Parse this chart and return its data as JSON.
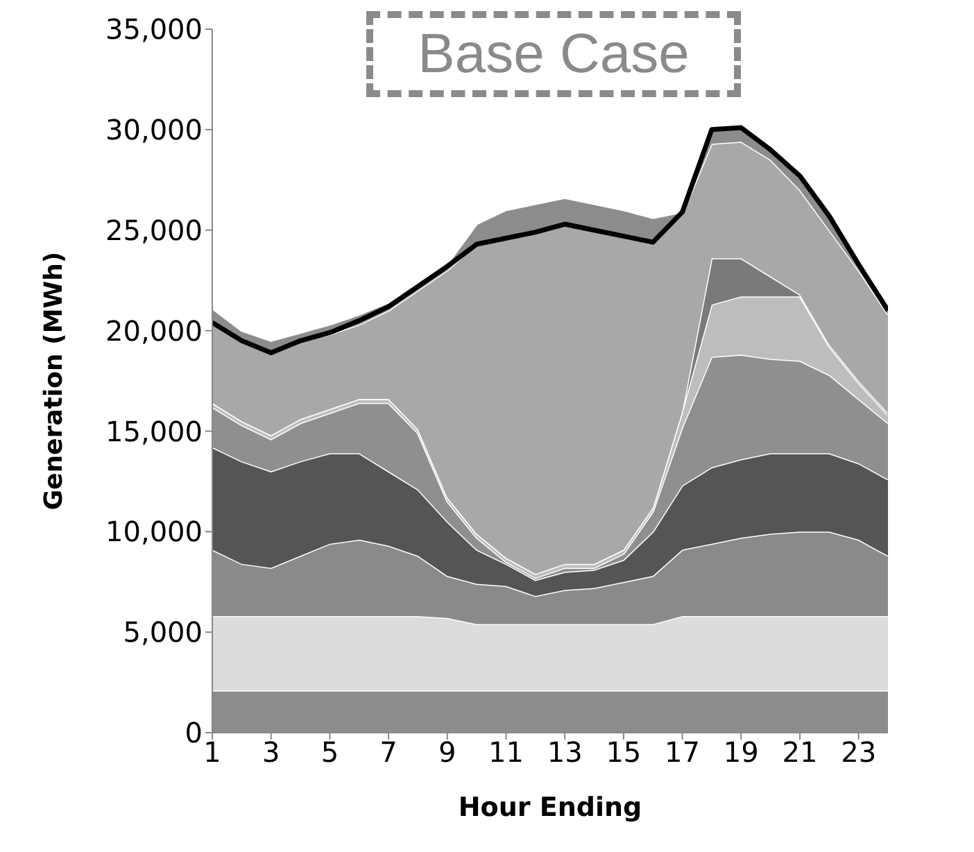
{
  "chart_data": {
    "type": "area",
    "stacked": true,
    "ylabel": "Generation (MWh)",
    "xlabel": "Hour Ending",
    "annotations": [
      "Base Case"
    ],
    "x": [
      1,
      2,
      3,
      4,
      5,
      6,
      7,
      8,
      9,
      10,
      11,
      12,
      13,
      14,
      15,
      16,
      17,
      18,
      19,
      20,
      21,
      22,
      23,
      24
    ],
    "xlim": [
      1,
      24
    ],
    "xticks": [
      1,
      3,
      5,
      7,
      9,
      11,
      13,
      15,
      17,
      19,
      21,
      23
    ],
    "ylim": [
      0,
      35000
    ],
    "yticks": [
      0,
      {
        "value": 5000,
        "label": "5,000"
      },
      {
        "value": 10000,
        "label": "10,000"
      },
      {
        "value": 15000,
        "label": "15,000"
      },
      {
        "value": 20000,
        "label": "20,000"
      },
      {
        "value": 25000,
        "label": "25,000"
      },
      {
        "value": 30000,
        "label": "30,000"
      },
      {
        "value": 35000,
        "label": "35,000"
      }
    ],
    "grid": false,
    "legend": false,
    "series": [
      {
        "color": "#8c8c8c",
        "values": [
          2100,
          2100,
          2100,
          2100,
          2100,
          2100,
          2100,
          2100,
          2100,
          2100,
          2100,
          2100,
          2100,
          2100,
          2100,
          2100,
          2100,
          2100,
          2100,
          2100,
          2100,
          2100,
          2100,
          2100
        ]
      },
      {
        "color": "#dcdcdc",
        "values": [
          3700,
          3700,
          3700,
          3700,
          3700,
          3700,
          3700,
          3700,
          3600,
          3300,
          3300,
          3300,
          3300,
          3300,
          3300,
          3300,
          3700,
          3700,
          3700,
          3700,
          3700,
          3700,
          3700,
          3700
        ]
      },
      {
        "color": "#8a8a8a",
        "values": [
          3300,
          2600,
          2400,
          3000,
          3600,
          3800,
          3500,
          3000,
          2100,
          2000,
          1900,
          1400,
          1700,
          1800,
          2100,
          2400,
          3300,
          3600,
          3900,
          4100,
          4200,
          4200,
          3800,
          3000
        ]
      },
      {
        "color": "#555555",
        "values": [
          5100,
          5100,
          4800,
          4700,
          4500,
          4300,
          3700,
          3300,
          2700,
          1700,
          1100,
          800,
          900,
          900,
          1100,
          2200,
          3200,
          3800,
          3900,
          4000,
          3900,
          3900,
          3800,
          3800
        ]
      },
      {
        "color": "#8f8f8f",
        "values": [
          2000,
          1800,
          1600,
          1900,
          2000,
          2500,
          3400,
          2800,
          1000,
          600,
          100,
          100,
          200,
          100,
          300,
          1000,
          2900,
          5500,
          5200,
          4700,
          4600,
          3900,
          3200,
          2800
        ]
      },
      {
        "color": "#bdbdbd",
        "values": [
          200,
          200,
          200,
          200,
          200,
          200,
          200,
          200,
          200,
          200,
          200,
          200,
          200,
          200,
          200,
          200,
          800,
          2600,
          2900,
          3100,
          3200,
          1400,
          800,
          400
        ]
      },
      {
        "color": "#7a7a7a",
        "values": [
          0,
          0,
          0,
          0,
          0,
          0,
          0,
          0,
          0,
          0,
          0,
          0,
          0,
          0,
          0,
          0,
          0,
          2300,
          1900,
          1000,
          100,
          100,
          100,
          100
        ]
      },
      {
        "color": "#a8a8a8",
        "values": [
          4000,
          4000,
          4200,
          3900,
          3700,
          3700,
          4400,
          6900,
          11300,
          14400,
          15900,
          17000,
          16900,
          16600,
          15600,
          13200,
          9800,
          5700,
          5800,
          5800,
          5200,
          5700,
          5500,
          4900
        ]
      },
      {
        "color": "#8c8c8c",
        "values": [
          700,
          500,
          500,
          400,
          500,
          500,
          400,
          300,
          300,
          1000,
          1400,
          1400,
          1300,
          1300,
          1300,
          1200,
          100,
          700,
          700,
          700,
          800,
          800,
          400,
          200
        ]
      },
      {
        "type": "line",
        "color": "#000000",
        "values": [
          20400,
          19500,
          18900,
          19500,
          19900,
          20500,
          21200,
          22200,
          23200,
          24300,
          24600,
          24900,
          25300,
          25000,
          24700,
          24400,
          25900,
          30000,
          30100,
          29000,
          27700,
          25700,
          23300,
          21000
        ]
      }
    ]
  }
}
